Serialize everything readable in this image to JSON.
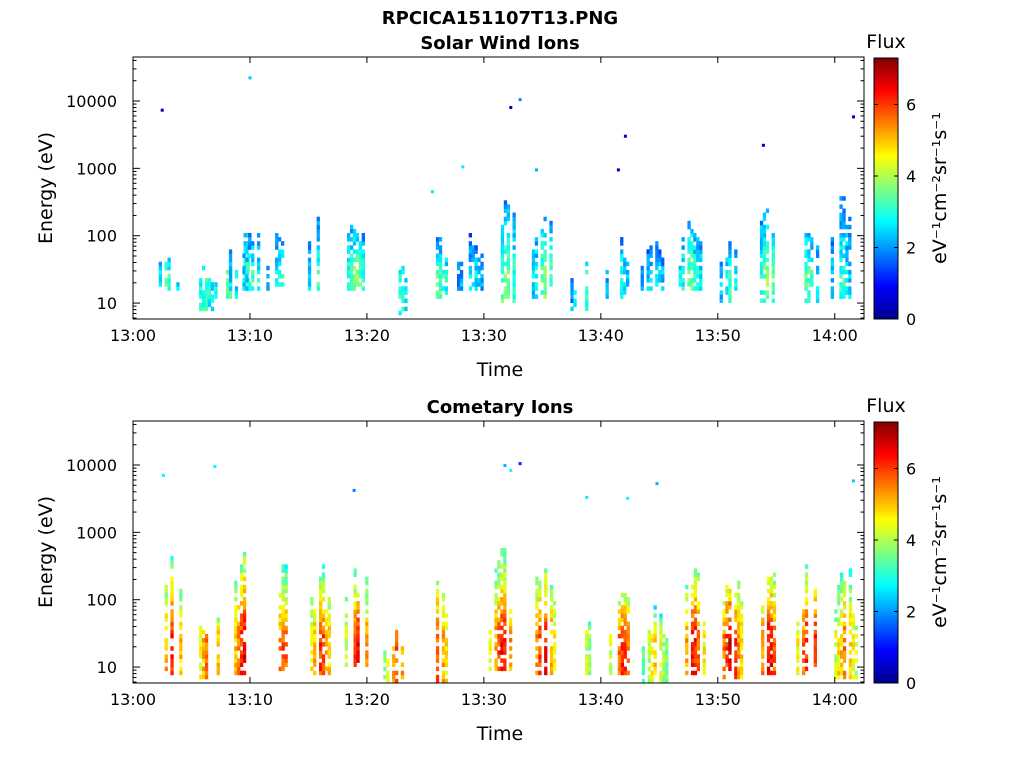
{
  "figure_title": "RPCICA151107T13.PNG",
  "colors": {
    "frame": "#000000",
    "background": "#ffffff"
  },
  "chart_data": [
    {
      "type": "heatmap",
      "title": "Solar Wind Ions",
      "xlabel": "Time",
      "ylabel": "Energy (eV)",
      "x_unit": "minutes after 13:00",
      "xlim": [
        0,
        62.5
      ],
      "ylim": [
        5.8,
        45000
      ],
      "y_scale": "log",
      "x_ticks": [
        0,
        10,
        20,
        30,
        40,
        50,
        60
      ],
      "x_tick_labels": [
        "13:00",
        "13:10",
        "13:20",
        "13:30",
        "13:40",
        "13:50",
        "14:00"
      ],
      "y_ticks": [
        10,
        100,
        1000,
        10000
      ],
      "y_tick_labels": [
        "10",
        "100",
        "1000",
        "10000"
      ],
      "colorbar": {
        "title": "Flux",
        "label": "eV⁻¹cm⁻²sr⁻¹s⁻¹",
        "range": [
          0,
          7.3
        ],
        "ticks": [
          0,
          2,
          4,
          6
        ],
        "tick_labels": [
          "0",
          "2",
          "4",
          "6"
        ],
        "colormap": "jet"
      },
      "bursts": [
        {
          "t": 2.8,
          "emin": 15,
          "emax": 70,
          "level": 3.3
        },
        {
          "t": 6.0,
          "emin": 8,
          "emax": 45,
          "level": 3.2
        },
        {
          "t": 7.8,
          "emin": 12,
          "emax": 55,
          "level": 3.6
        },
        {
          "t": 9.3,
          "emin": 15,
          "emax": 210,
          "level": 3.7
        },
        {
          "t": 10.2,
          "emin": 15,
          "emax": 160,
          "level": 3.2
        },
        {
          "t": 12.5,
          "emin": 15,
          "emax": 180,
          "level": 3.0
        },
        {
          "t": 15.8,
          "emin": 15,
          "emax": 280,
          "level": 3.3
        },
        {
          "t": 18.9,
          "emin": 15,
          "emax": 220,
          "level": 3.8
        },
        {
          "t": 22.8,
          "emin": 7,
          "emax": 40,
          "level": 3.0
        },
        {
          "t": 26.0,
          "emin": 12,
          "emax": 110,
          "level": 3.5
        },
        {
          "t": 28.8,
          "emin": 15,
          "emax": 130,
          "level": 2.8
        },
        {
          "t": 31.8,
          "emin": 10,
          "emax": 500,
          "level": 3.8
        },
        {
          "t": 35.2,
          "emin": 12,
          "emax": 300,
          "level": 3.8
        },
        {
          "t": 38.5,
          "emin": 8,
          "emax": 60,
          "level": 3.1
        },
        {
          "t": 41.5,
          "emin": 12,
          "emax": 130,
          "level": 3.0
        },
        {
          "t": 44.5,
          "emin": 15,
          "emax": 130,
          "level": 2.8
        },
        {
          "t": 47.5,
          "emin": 15,
          "emax": 280,
          "level": 3.6
        },
        {
          "t": 51.0,
          "emin": 10,
          "emax": 100,
          "level": 3.2
        },
        {
          "t": 54.2,
          "emin": 10,
          "emax": 450,
          "level": 3.8
        },
        {
          "t": 57.5,
          "emin": 10,
          "emax": 220,
          "level": 3.5
        },
        {
          "t": 60.5,
          "emin": 12,
          "emax": 700,
          "level": 3.1
        }
      ],
      "isolated_points": [
        {
          "t": 2.5,
          "e": 7300,
          "level": 0.6
        },
        {
          "t": 10.0,
          "e": 22000,
          "level": 2.3
        },
        {
          "t": 25.6,
          "e": 450,
          "level": 2.6
        },
        {
          "t": 28.2,
          "e": 1050,
          "level": 2.6
        },
        {
          "t": 32.3,
          "e": 8000,
          "level": 0.4
        },
        {
          "t": 33.1,
          "e": 10500,
          "level": 1.9
        },
        {
          "t": 34.5,
          "e": 950,
          "level": 2.2
        },
        {
          "t": 41.5,
          "e": 950,
          "level": 0.5
        },
        {
          "t": 42.1,
          "e": 3000,
          "level": 0.5
        },
        {
          "t": 53.9,
          "e": 2200,
          "level": 0.5
        },
        {
          "t": 61.6,
          "e": 5800,
          "level": 0.5
        }
      ]
    },
    {
      "type": "heatmap",
      "title": "Cometary Ions",
      "xlabel": "Time",
      "ylabel": "Energy (eV)",
      "x_unit": "minutes after 13:00",
      "xlim": [
        0,
        62.5
      ],
      "ylim": [
        5.8,
        45000
      ],
      "y_scale": "log",
      "x_ticks": [
        0,
        10,
        20,
        30,
        40,
        50,
        60
      ],
      "x_tick_labels": [
        "13:00",
        "13:10",
        "13:20",
        "13:30",
        "13:40",
        "13:50",
        "14:00"
      ],
      "y_ticks": [
        10,
        100,
        1000,
        10000
      ],
      "y_tick_labels": [
        "10",
        "100",
        "1000",
        "10000"
      ],
      "colorbar": {
        "title": "Flux",
        "label": "eV⁻¹cm⁻²sr⁻¹s⁻¹",
        "range": [
          0,
          7.3
        ],
        "ticks": [
          0,
          2,
          4,
          6
        ],
        "tick_labels": [
          "0",
          "2",
          "4",
          "6"
        ],
        "colormap": "jet"
      },
      "bursts": [
        {
          "t": 3.3,
          "emin": 8,
          "emax": 800,
          "level": 6.3
        },
        {
          "t": 6.5,
          "emin": 7,
          "emax": 130,
          "level": 6.2
        },
        {
          "t": 9.5,
          "emin": 8,
          "emax": 900,
          "level": 6.8
        },
        {
          "t": 12.8,
          "emin": 8,
          "emax": 500,
          "level": 6.0
        },
        {
          "t": 16.0,
          "emin": 8,
          "emax": 500,
          "level": 6.2
        },
        {
          "t": 19.2,
          "emin": 10,
          "emax": 500,
          "level": 6.6
        },
        {
          "t": 22.5,
          "emin": 6,
          "emax": 40,
          "level": 6.0
        },
        {
          "t": 26.0,
          "emin": 6,
          "emax": 700,
          "level": 6.0
        },
        {
          "t": 31.5,
          "emin": 8,
          "emax": 800,
          "level": 6.6
        },
        {
          "t": 35.0,
          "emin": 8,
          "emax": 600,
          "level": 6.6
        },
        {
          "t": 38.0,
          "emin": 8,
          "emax": 130,
          "level": 5.4
        },
        {
          "t": 41.8,
          "emin": 8,
          "emax": 300,
          "level": 6.3
        },
        {
          "t": 44.6,
          "emin": 6,
          "emax": 100,
          "level": 5.0
        },
        {
          "t": 47.8,
          "emin": 8,
          "emax": 800,
          "level": 6.4
        },
        {
          "t": 51.0,
          "emin": 7,
          "emax": 600,
          "level": 6.8
        },
        {
          "t": 54.3,
          "emin": 8,
          "emax": 600,
          "level": 6.6
        },
        {
          "t": 57.8,
          "emin": 8,
          "emax": 700,
          "level": 6.9
        },
        {
          "t": 60.8,
          "emin": 7,
          "emax": 500,
          "level": 5.8
        }
      ],
      "isolated_points": [
        {
          "t": 2.6,
          "e": 7000,
          "level": 2.7
        },
        {
          "t": 7.0,
          "e": 9500,
          "level": 2.7
        },
        {
          "t": 18.9,
          "e": 4200,
          "level": 1.8
        },
        {
          "t": 31.8,
          "e": 9800,
          "level": 2.2
        },
        {
          "t": 32.3,
          "e": 8300,
          "level": 2.8
        },
        {
          "t": 33.1,
          "e": 10500,
          "level": 1.2
        },
        {
          "t": 38.8,
          "e": 3300,
          "level": 2.6
        },
        {
          "t": 42.3,
          "e": 3200,
          "level": 2.7
        },
        {
          "t": 44.8,
          "e": 5300,
          "level": 2.2
        },
        {
          "t": 61.6,
          "e": 5800,
          "level": 2.4
        }
      ]
    }
  ]
}
